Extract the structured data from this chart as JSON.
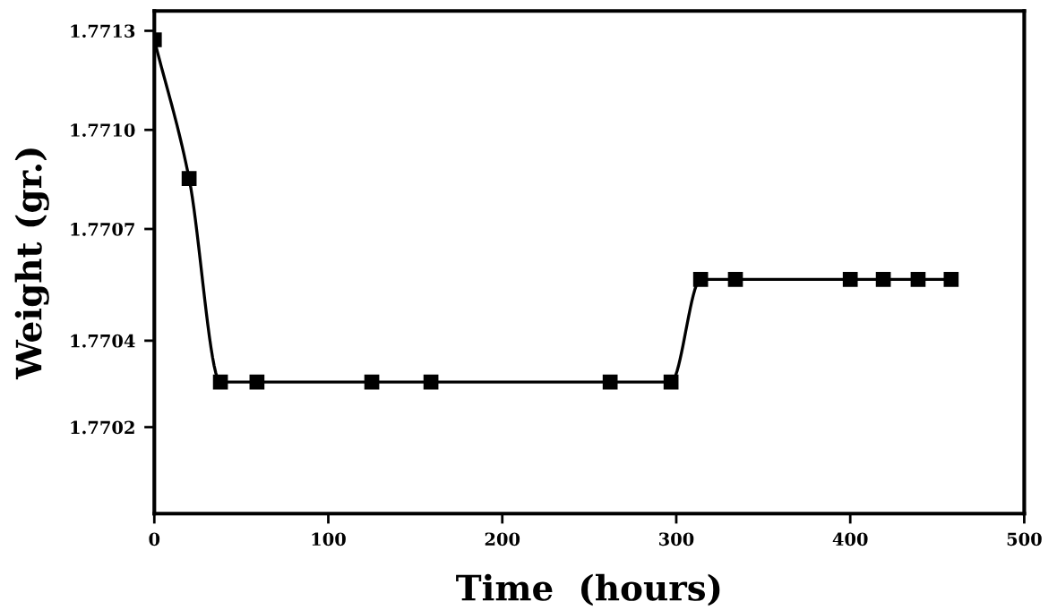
{
  "chart_data": {
    "type": "line",
    "xlabel": "Time  (hours)",
    "ylabel": "Weight (gr.)",
    "x": [
      0,
      20,
      38,
      59,
      125,
      159,
      262,
      297,
      314,
      334,
      400,
      419,
      439,
      458
    ],
    "series": [
      {
        "color": "#000000",
        "values": [
          1.771275,
          1.77089,
          1.770325,
          1.770325,
          1.770325,
          1.770325,
          1.770325,
          1.770325,
          1.77061,
          1.77061,
          1.77061,
          1.77061,
          1.77061,
          1.77061
        ]
      }
    ],
    "marker": "square",
    "line_style": "solid",
    "grid": false,
    "legend": false,
    "xlim": [
      0,
      500
    ],
    "xticks": [
      0,
      100,
      200,
      300,
      400,
      500
    ],
    "ylim": [
      1.76996,
      1.771355
    ],
    "yticks": [
      {
        "value": 1.7713,
        "label": "1.7713"
      },
      {
        "value": 1.771025,
        "label": "1.7710"
      },
      {
        "value": 1.77075,
        "label": "1.7707"
      },
      {
        "value": 1.77044,
        "label": "1.7704"
      },
      {
        "value": 1.7702,
        "label": "1.7702"
      }
    ]
  }
}
